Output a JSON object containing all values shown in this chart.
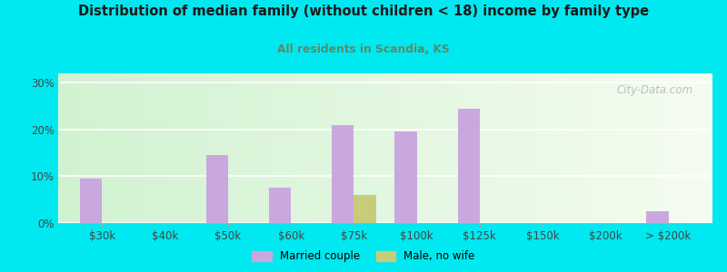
{
  "title": "Distribution of median family (without children < 18) income by family type",
  "subtitle": "All residents in Scandia, KS",
  "categories": [
    "$30k",
    "$40k",
    "$50k",
    "$60k",
    "$75k",
    "$100k",
    "$125k",
    "$150k",
    "$200k",
    "> $200k"
  ],
  "married_couple": [
    9.5,
    0,
    14.5,
    7.5,
    21.0,
    19.5,
    24.5,
    0,
    0,
    2.5
  ],
  "male_no_wife": [
    0,
    0,
    0,
    0,
    6.0,
    0,
    0,
    0,
    0,
    0
  ],
  "bar_width": 0.35,
  "married_color": "#c9a8e0",
  "male_color": "#c8cb7a",
  "ylim": [
    0,
    32
  ],
  "yticks": [
    0,
    10,
    20,
    30
  ],
  "ytick_labels": [
    "0%",
    "10%",
    "20%",
    "30%"
  ],
  "title_color": "#1a1a1a",
  "subtitle_color": "#5a8a6a",
  "watermark": "City-Data.com",
  "legend_married": "Married couple",
  "legend_male": "Male, no wife",
  "outer_bg": "#00e8f0"
}
